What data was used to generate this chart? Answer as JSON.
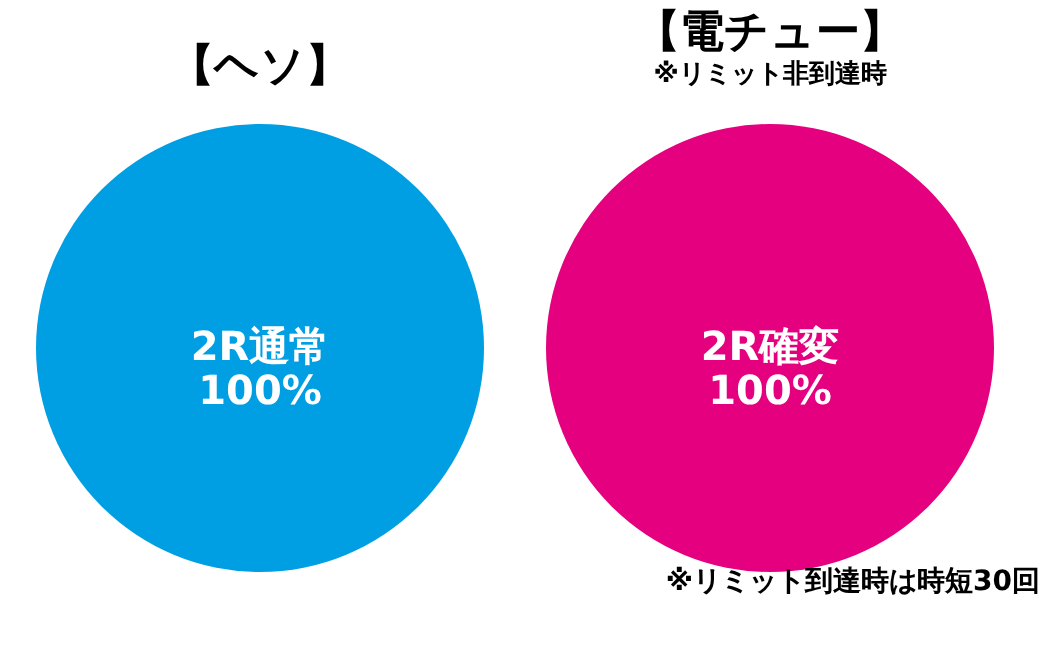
{
  "chart_data": [
    {
      "type": "pie",
      "title": "【ヘソ】",
      "categories": [
        "2R通常"
      ],
      "values": [
        100
      ],
      "colors": [
        "#009fe3"
      ],
      "value_labels": [
        "100%"
      ]
    },
    {
      "type": "pie",
      "title": "【電チュー】",
      "subtitle": "※リミット非到達時",
      "categories": [
        "2R確変"
      ],
      "values": [
        100
      ],
      "colors": [
        "#e4007f"
      ],
      "value_labels": [
        "100%"
      ],
      "annotations": [
        "※リミット到達時は時短30回"
      ]
    }
  ]
}
